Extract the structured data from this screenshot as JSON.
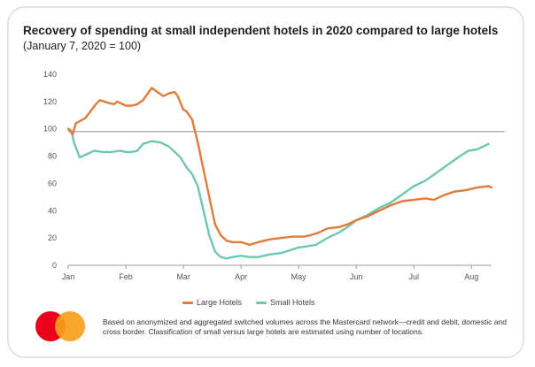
{
  "header": {
    "title": "Recovery of spending at small independent hotels in 2020 compared to large hotels",
    "subtitle": "(January 7, 2020 = 100)"
  },
  "legend": {
    "large_label": "Large Hotels",
    "small_label": "Small Hotels"
  },
  "footnote": "Based on anonymized and aggregated switched volumes across the Mastercard network—credit and debit, domestic and cross border. Classification of small versus large hotels are estimated using number of locations.",
  "colors": {
    "large": "#e07b39",
    "small": "#6ec6b2",
    "reference": "#9a9a9a",
    "axis": "#999999",
    "logo_red": "#eb001b",
    "logo_orange": "#f79e1b"
  },
  "chart_data": {
    "type": "line",
    "title": "Recovery of spending at small independent hotels in 2020 compared to large hotels",
    "subtitle": "(January 7, 2020 = 100)",
    "xlabel": "",
    "ylabel": "",
    "x_unit": "months since Jan 1, 2020",
    "x_ticks": [
      {
        "label": "Jan",
        "value": 0
      },
      {
        "label": "Feb",
        "value": 1
      },
      {
        "label": "Mar",
        "value": 2
      },
      {
        "label": "Apr",
        "value": 3
      },
      {
        "label": "May",
        "value": 4
      },
      {
        "label": "Jun",
        "value": 5
      },
      {
        "label": "Jul",
        "value": 6
      },
      {
        "label": "Aug",
        "value": 7
      }
    ],
    "xlim": [
      0,
      7.35
    ],
    "ylim": [
      0,
      140
    ],
    "y_ticks": [
      0,
      20,
      40,
      60,
      80,
      100,
      120,
      140
    ],
    "reference_line": 98,
    "grid": false,
    "legend_position": "bottom-center",
    "series": [
      {
        "name": "Large Hotels",
        "color": "#e07b39",
        "points": [
          [
            0,
            100
          ],
          [
            0.08,
            96
          ],
          [
            0.13,
            104
          ],
          [
            0.3,
            108
          ],
          [
            0.48,
            118
          ],
          [
            0.55,
            121
          ],
          [
            0.7,
            119
          ],
          [
            0.8,
            118
          ],
          [
            0.85,
            120
          ],
          [
            1,
            117
          ],
          [
            1.1,
            117
          ],
          [
            1.2,
            118
          ],
          [
            1.3,
            121
          ],
          [
            1.45,
            130
          ],
          [
            1.55,
            127
          ],
          [
            1.65,
            124
          ],
          [
            1.75,
            126
          ],
          [
            1.85,
            127
          ],
          [
            1.9,
            124
          ],
          [
            2.0,
            114
          ],
          [
            2.05,
            113
          ],
          [
            2.15,
            107
          ],
          [
            2.25,
            90
          ],
          [
            2.35,
            70
          ],
          [
            2.45,
            50
          ],
          [
            2.55,
            30
          ],
          [
            2.65,
            22
          ],
          [
            2.75,
            18
          ],
          [
            2.85,
            17
          ],
          [
            3.0,
            17
          ],
          [
            3.15,
            15
          ],
          [
            3.3,
            17
          ],
          [
            3.5,
            19
          ],
          [
            3.7,
            20
          ],
          [
            3.9,
            21
          ],
          [
            4.1,
            21
          ],
          [
            4.2,
            22
          ],
          [
            4.35,
            24
          ],
          [
            4.5,
            27
          ],
          [
            4.7,
            28
          ],
          [
            4.85,
            30
          ],
          [
            5.0,
            33
          ],
          [
            5.2,
            36
          ],
          [
            5.4,
            40
          ],
          [
            5.6,
            44
          ],
          [
            5.8,
            47
          ],
          [
            6.0,
            48
          ],
          [
            6.2,
            49
          ],
          [
            6.35,
            48
          ],
          [
            6.5,
            51
          ],
          [
            6.7,
            54
          ],
          [
            6.9,
            55
          ],
          [
            7.1,
            57
          ],
          [
            7.3,
            58
          ],
          [
            7.35,
            57
          ]
        ]
      },
      {
        "name": "Small Hotels",
        "color": "#6ec6b2",
        "points": [
          [
            0,
            100
          ],
          [
            0.05,
            99
          ],
          [
            0.1,
            90
          ],
          [
            0.2,
            79
          ],
          [
            0.3,
            81
          ],
          [
            0.45,
            84
          ],
          [
            0.6,
            83
          ],
          [
            0.75,
            83
          ],
          [
            0.9,
            84
          ],
          [
            1.0,
            83
          ],
          [
            1.1,
            83
          ],
          [
            1.2,
            84
          ],
          [
            1.3,
            89
          ],
          [
            1.45,
            91
          ],
          [
            1.6,
            90
          ],
          [
            1.75,
            87
          ],
          [
            1.85,
            83
          ],
          [
            1.95,
            79
          ],
          [
            2.05,
            72
          ],
          [
            2.15,
            67
          ],
          [
            2.25,
            58
          ],
          [
            2.35,
            40
          ],
          [
            2.45,
            22
          ],
          [
            2.55,
            10
          ],
          [
            2.65,
            6
          ],
          [
            2.75,
            5
          ],
          [
            2.85,
            6
          ],
          [
            3.0,
            7
          ],
          [
            3.15,
            6
          ],
          [
            3.3,
            6
          ],
          [
            3.5,
            8
          ],
          [
            3.7,
            9
          ],
          [
            3.85,
            11
          ],
          [
            4.0,
            13
          ],
          [
            4.15,
            14
          ],
          [
            4.3,
            15
          ],
          [
            4.5,
            20
          ],
          [
            4.7,
            24
          ],
          [
            4.85,
            28
          ],
          [
            5.0,
            33
          ],
          [
            5.2,
            37
          ],
          [
            5.4,
            42
          ],
          [
            5.6,
            46
          ],
          [
            5.8,
            52
          ],
          [
            6.0,
            58
          ],
          [
            6.2,
            62
          ],
          [
            6.4,
            68
          ],
          [
            6.6,
            74
          ],
          [
            6.8,
            80
          ],
          [
            6.95,
            84
          ],
          [
            7.1,
            85
          ],
          [
            7.2,
            87
          ],
          [
            7.3,
            89
          ]
        ]
      }
    ]
  }
}
